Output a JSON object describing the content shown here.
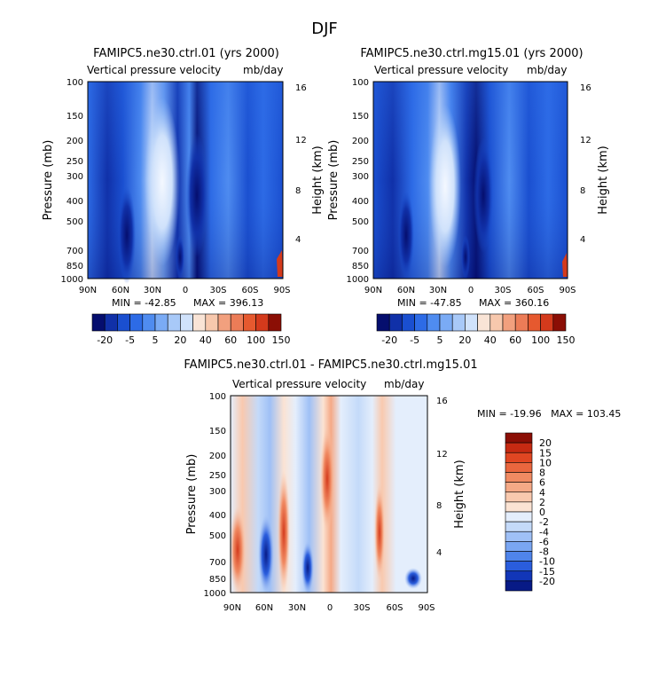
{
  "figure": {
    "season": "DJF"
  },
  "chart_data": [
    {
      "type": "heatmap",
      "title": "FAMIPC5.ne30.ctrl.01 (yrs 2000)",
      "subtitle_left": "Vertical pressure velocity",
      "subtitle_right": "mb/day",
      "xlabel": "",
      "ylabel": "Pressure (mb)",
      "y2label": "Height (km)",
      "x_ticks": [
        "90N",
        "60N",
        "30N",
        "0",
        "30S",
        "60S",
        "90S"
      ],
      "y_ticks": [
        "100",
        "150",
        "200",
        "250",
        "300",
        "400",
        "500",
        "700",
        "850",
        "1000"
      ],
      "y2_ticks": [
        "16",
        "12",
        "8",
        "4"
      ],
      "min_label": "MIN = -42.85",
      "max_label": "MAX = 396.13",
      "colorbar": {
        "orientation": "horizontal",
        "labels": [
          "-20",
          "-5",
          "5",
          "20",
          "40",
          "60",
          "100",
          "150"
        ],
        "colors": [
          "#050e6e",
          "#1030a8",
          "#1a4fd0",
          "#2d6be6",
          "#4f8cf0",
          "#7aabf5",
          "#a8c9f8",
          "#d0e2fb",
          "#f9e4d6",
          "#f7c8ad",
          "#f2a07e",
          "#ec7c57",
          "#e6592f",
          "#d43a1c",
          "#8b0e05"
        ]
      }
    },
    {
      "type": "heatmap",
      "title": "FAMIPC5.ne30.ctrl.mg15.01 (yrs 2000)",
      "subtitle_left": "Vertical pressure velocity",
      "subtitle_right": "mb/day",
      "xlabel": "",
      "ylabel": "Pressure (mb)",
      "y2label": "Height (km)",
      "x_ticks": [
        "90N",
        "60N",
        "30N",
        "0",
        "30S",
        "60S",
        "90S"
      ],
      "y_ticks": [
        "100",
        "150",
        "200",
        "250",
        "300",
        "400",
        "500",
        "700",
        "850",
        "1000"
      ],
      "y2_ticks": [
        "16",
        "12",
        "8",
        "4"
      ],
      "min_label": "MIN = -47.85",
      "max_label": "MAX = 360.16",
      "colorbar": {
        "orientation": "horizontal",
        "labels": [
          "-20",
          "-5",
          "5",
          "20",
          "40",
          "60",
          "100",
          "150"
        ],
        "colors": [
          "#050e6e",
          "#1030a8",
          "#1a4fd0",
          "#2d6be6",
          "#4f8cf0",
          "#7aabf5",
          "#a8c9f8",
          "#d0e2fb",
          "#f9e4d6",
          "#f7c8ad",
          "#f2a07e",
          "#ec7c57",
          "#e6592f",
          "#d43a1c",
          "#8b0e05"
        ]
      }
    },
    {
      "type": "heatmap",
      "title": "FAMIPC5.ne30.ctrl.01 - FAMIPC5.ne30.ctrl.mg15.01",
      "subtitle_left": "Vertical pressure velocity",
      "subtitle_right": "mb/day",
      "xlabel": "",
      "ylabel": "Pressure (mb)",
      "y2label": "Height (km)",
      "x_ticks": [
        "90N",
        "60N",
        "30N",
        "0",
        "30S",
        "60S",
        "90S"
      ],
      "y_ticks": [
        "100",
        "150",
        "200",
        "250",
        "300",
        "400",
        "500",
        "700",
        "850",
        "1000"
      ],
      "y2_ticks": [
        "16",
        "12",
        "8",
        "4"
      ],
      "min_max_label": "MIN = -19.96   MAX = 103.45",
      "colorbar": {
        "orientation": "vertical",
        "labels": [
          "20",
          "15",
          "10",
          "8",
          "6",
          "4",
          "2",
          "0",
          "-2",
          "-4",
          "-6",
          "-8",
          "-10",
          "-15",
          "-20"
        ],
        "colors": [
          "#8b0e05",
          "#c62a12",
          "#e04622",
          "#e9663e",
          "#f08a62",
          "#f5a986",
          "#f9c9ae",
          "#fbe3d3",
          "#e4eefc",
          "#c4daf9",
          "#9fc0f6",
          "#7aa6f2",
          "#4f84ea",
          "#2a5ddd",
          "#1236b8",
          "#071a86"
        ]
      }
    }
  ]
}
